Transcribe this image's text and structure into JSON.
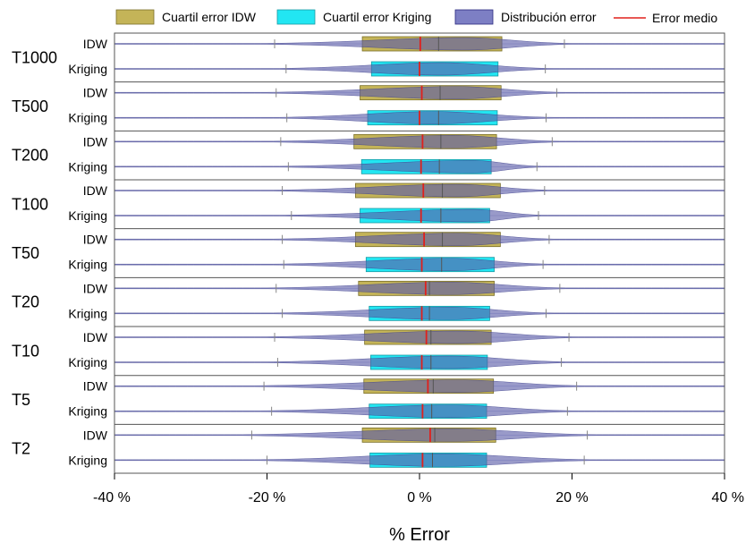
{
  "chart_data": {
    "type": "boxplot-violin",
    "xlabel": "% Error",
    "xlim": [
      -40,
      40
    ],
    "xticks": [
      -40,
      -20,
      0,
      20,
      40
    ],
    "xtick_labels": [
      "-40 %",
      "-20 %",
      "0 %",
      "20 %",
      "40 %"
    ],
    "legend_position": "top",
    "legend": [
      {
        "key": "iqr_idw",
        "label": "Cuartil error IDW",
        "kind": "box",
        "fill": "#c4b458",
        "stroke": "#7a6f2a"
      },
      {
        "key": "iqr_kriging",
        "label": "Cuartil error Kriging",
        "kind": "box",
        "fill": "#22e6f2",
        "stroke": "#1a9aa3"
      },
      {
        "key": "dist",
        "label": "Distribución error",
        "kind": "box",
        "fill": "#7d7fc4",
        "stroke": "#2a2a80"
      },
      {
        "key": "mean",
        "label": "Error medio",
        "kind": "line",
        "stroke": "#e0201c"
      }
    ],
    "colors": {
      "idw_box": "#c4b458",
      "kriging_box": "#22e6f2",
      "violin": "#5a5ca8",
      "mean_line": "#e0201c",
      "median_line": "#555555",
      "whisker": "#888888",
      "frame": "#555555"
    },
    "groups": [
      {
        "name": "T1000",
        "series": [
          {
            "method": "IDW",
            "q1": -7.5,
            "median": 2.5,
            "q3": 10.8,
            "mean": 0.1,
            "whisker_low": -19.0,
            "whisker_high": 19.0,
            "peak": 6.0
          },
          {
            "method": "Kriging",
            "q1": -6.3,
            "median": 0.0,
            "q3": 10.3,
            "mean": 0.0,
            "whisker_low": -17.5,
            "whisker_high": 16.5,
            "peak": 3.0
          }
        ]
      },
      {
        "name": "T500",
        "series": [
          {
            "method": "IDW",
            "q1": -7.8,
            "median": 2.7,
            "q3": 10.7,
            "mean": 0.3,
            "whisker_low": -18.8,
            "whisker_high": 18.0,
            "peak": 5.0
          },
          {
            "method": "Kriging",
            "q1": -6.8,
            "median": 2.5,
            "q3": 10.2,
            "mean": 0.0,
            "whisker_low": -17.4,
            "whisker_high": 16.6,
            "peak": 2.0
          }
        ]
      },
      {
        "name": "T200",
        "series": [
          {
            "method": "IDW",
            "q1": -8.6,
            "median": 2.8,
            "q3": 10.1,
            "mean": 0.4,
            "whisker_low": -18.2,
            "whisker_high": 17.4,
            "peak": 4.5
          },
          {
            "method": "Kriging",
            "q1": -7.6,
            "median": 2.6,
            "q3": 9.4,
            "mean": 0.2,
            "whisker_low": -17.2,
            "whisker_high": 15.4,
            "peak": 7.0
          }
        ]
      },
      {
        "name": "T100",
        "series": [
          {
            "method": "IDW",
            "q1": -8.4,
            "median": 3.0,
            "q3": 10.6,
            "mean": 0.5,
            "whisker_low": -18.0,
            "whisker_high": 16.4,
            "peak": 5.0
          },
          {
            "method": "Kriging",
            "q1": -7.8,
            "median": 2.8,
            "q3": 9.2,
            "mean": 0.2,
            "whisker_low": -16.8,
            "whisker_high": 15.6,
            "peak": 7.0
          }
        ]
      },
      {
        "name": "T50",
        "series": [
          {
            "method": "IDW",
            "q1": -8.4,
            "median": 3.0,
            "q3": 10.6,
            "mean": 0.6,
            "whisker_low": -18.0,
            "whisker_high": 17.0,
            "peak": 5.0
          },
          {
            "method": "Kriging",
            "q1": -7.0,
            "median": 2.9,
            "q3": 9.8,
            "mean": 0.3,
            "whisker_low": -17.8,
            "whisker_high": 16.2,
            "peak": 4.0
          }
        ]
      },
      {
        "name": "T20",
        "series": [
          {
            "method": "IDW",
            "q1": -8.0,
            "median": 1.3,
            "q3": 9.8,
            "mean": 0.8,
            "whisker_low": -18.8,
            "whisker_high": 18.4,
            "peak": 4.0
          },
          {
            "method": "Kriging",
            "q1": -6.6,
            "median": 1.3,
            "q3": 9.2,
            "mean": 0.3,
            "whisker_low": -18.0,
            "whisker_high": 16.6,
            "peak": 4.0
          }
        ]
      },
      {
        "name": "T10",
        "series": [
          {
            "method": "IDW",
            "q1": -7.2,
            "median": 1.5,
            "q3": 9.4,
            "mean": 0.9,
            "whisker_low": -19.0,
            "whisker_high": 19.6,
            "peak": 5.0
          },
          {
            "method": "Kriging",
            "q1": -6.4,
            "median": 1.5,
            "q3": 8.9,
            "mean": 0.3,
            "whisker_low": -18.6,
            "whisker_high": 18.6,
            "peak": 4.0
          }
        ]
      },
      {
        "name": "T5",
        "series": [
          {
            "method": "IDW",
            "q1": -7.3,
            "median": 1.8,
            "q3": 9.7,
            "mean": 1.1,
            "whisker_low": -20.4,
            "whisker_high": 20.6,
            "peak": 5.0
          },
          {
            "method": "Kriging",
            "q1": -6.6,
            "median": 1.6,
            "q3": 8.8,
            "mean": 0.4,
            "whisker_low": -19.4,
            "whisker_high": 19.4,
            "peak": 4.0
          }
        ]
      },
      {
        "name": "T2",
        "series": [
          {
            "method": "IDW",
            "q1": -7.5,
            "median": 2.0,
            "q3": 10.0,
            "mean": 1.4,
            "whisker_low": -22.0,
            "whisker_high": 22.0,
            "peak": 4.0
          },
          {
            "method": "Kriging",
            "q1": -6.5,
            "median": 1.7,
            "q3": 8.8,
            "mean": 0.4,
            "whisker_low": -20.0,
            "whisker_high": 21.6,
            "peak": 3.0
          }
        ]
      }
    ]
  }
}
